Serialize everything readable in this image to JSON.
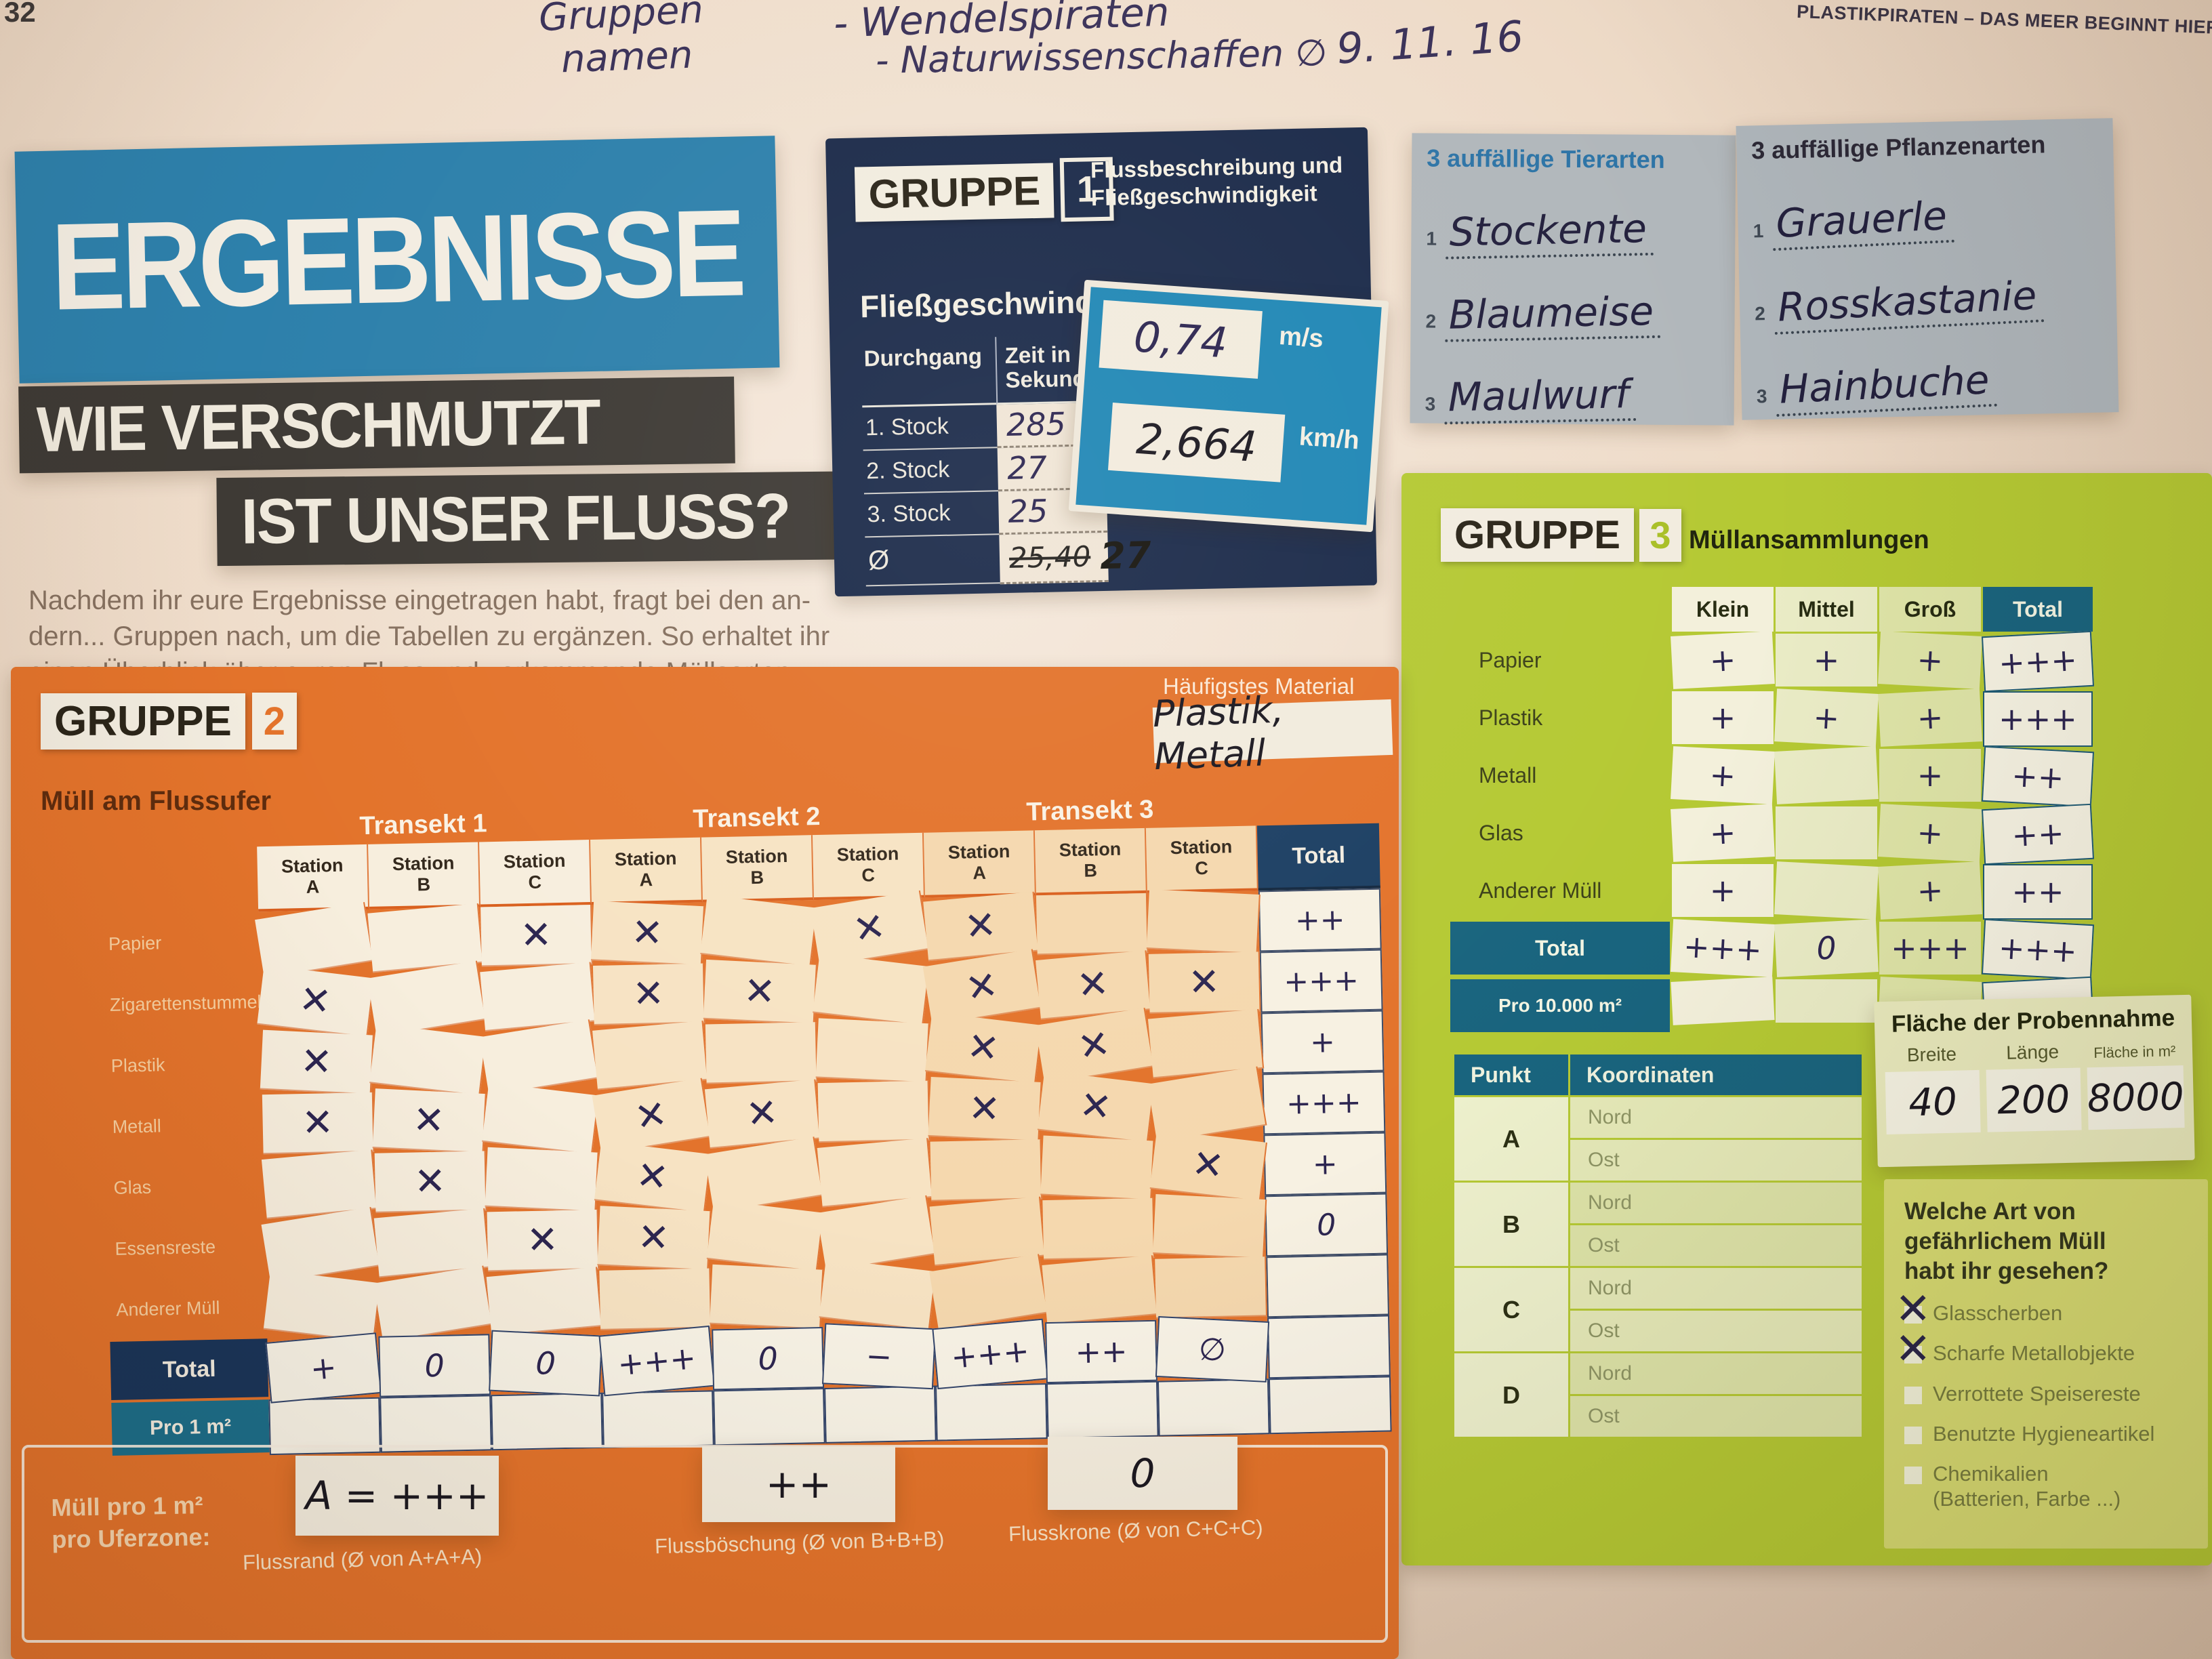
{
  "palette": {
    "orange": "#e3732b",
    "lime": "#b5c934",
    "navy": "#1c2b4a",
    "blue": "#2d80ab",
    "teal": "#19647e",
    "speed_blue": "#2087b5"
  },
  "page": {
    "number": "32",
    "brand": "PLASTIKPIRATEN – DAS MEER BEGINNT HIER!"
  },
  "handwritten_header": {
    "label_line1": "Gruppen",
    "label_line2": "namen",
    "entry1": "- Wendelspiraten",
    "entry2": "- Naturwissenschaffen ∅",
    "date": "9. 11. 16"
  },
  "title": {
    "line1": "ERGEBNISSE",
    "line2": "WIE VERSCHMUTZT",
    "line3": "IST UNSER FLUSS?"
  },
  "intro": "Nachdem ihr eure Ergebnisse eingetragen habt, fragt bei den an-\ndern... Gruppen nach, um die Tabellen zu ergänzen. So erhaltet ihr\neinen Überblick über euren Fluss und vorkommende Müllsorten.",
  "gruppe1": {
    "label": "GRUPPE",
    "number": "1",
    "topic": "Flussbeschreibung und\nFließgeschwindigkeit",
    "subtitle": "Fließgeschwindigkeit",
    "col1": "Durchgang",
    "col2": "Zeit in\nSekunden",
    "rows": [
      {
        "label": "1. Stock",
        "value": "285"
      },
      {
        "label": "2. Stock",
        "value": "27"
      },
      {
        "label": "3. Stock",
        "value": "25"
      }
    ],
    "oe_label": "Ø",
    "oe_struck": "25,40",
    "oe_value": "27",
    "speed_ms": {
      "value": "0,74",
      "unit": "m/s"
    },
    "speed_kmh": {
      "value": "2,664",
      "unit": "km/h"
    }
  },
  "species": {
    "tiere": {
      "title": "3 auffällige Tierarten",
      "items": [
        "Stockente",
        "Blaumeise",
        "Maulwurf"
      ]
    },
    "pflanzen": {
      "title": "3 auffällige Pflanzenarten",
      "items": [
        "Grauerle",
        "Rosskastanie",
        "Hainbuche"
      ]
    }
  },
  "gruppe2": {
    "label": "GRUPPE",
    "number": "2",
    "subtitle": "Müll am Flussufer",
    "material_label": "Häufigstes Material",
    "material_value": "Plastik, Metall",
    "transekte": [
      "Transekt 1",
      "Transekt 2",
      "Transekt 3"
    ],
    "station_word": "Station",
    "station_letters": [
      "A",
      "B",
      "C",
      "A",
      "B",
      "C",
      "A",
      "B",
      "C"
    ],
    "total_header": "Total",
    "rows": [
      {
        "label": "Papier",
        "marks": [
          "",
          "",
          "✕",
          "✕",
          "",
          "✕",
          "✕",
          "",
          ""
        ],
        "total": "++"
      },
      {
        "label": "Zigarettenstummel",
        "marks": [
          "✕",
          "",
          "",
          "✕",
          "✕",
          "",
          "✕",
          "✕",
          "✕"
        ],
        "total": "+++"
      },
      {
        "label": "Plastik",
        "marks": [
          "✕",
          "",
          "",
          "",
          "",
          "",
          "✕",
          "✕",
          ""
        ],
        "total": "+"
      },
      {
        "label": "Metall",
        "marks": [
          "✕",
          "✕",
          "",
          "✕",
          "✕",
          "",
          "✕",
          "✕",
          ""
        ],
        "total": "+++"
      },
      {
        "label": "Glas",
        "marks": [
          "",
          "✕",
          "",
          "✕",
          "",
          "",
          "",
          "",
          "✕"
        ],
        "total": "+"
      },
      {
        "label": "Essensreste",
        "marks": [
          "",
          "",
          "✕",
          "✕",
          "",
          "",
          "",
          "",
          ""
        ],
        "total": "0"
      },
      {
        "label": "Anderer Müll",
        "marks": [
          "",
          "",
          "",
          "",
          "",
          "",
          "",
          "",
          ""
        ],
        "total": ""
      }
    ],
    "total_row": {
      "label": "Total",
      "values": [
        "+",
        "0",
        "0",
        "+++",
        "0",
        "−",
        "+++",
        "++",
        "∅"
      ],
      "total": ""
    },
    "pro_row": {
      "label": "Pro 1 m²",
      "values": [
        "",
        "",
        "",
        "",
        "",
        "",
        "",
        "",
        ""
      ],
      "total": ""
    },
    "zones_label": "Müll pro 1 m²\npro Uferzone:",
    "zones": [
      {
        "value": "A = +++",
        "caption": "Flussrand (Ø von A+A+A)"
      },
      {
        "value": "++",
        "caption": "Flussböschung (Ø von B+B+B)"
      },
      {
        "value": "0",
        "caption": "Flusskrone (Ø von C+C+C)"
      }
    ]
  },
  "gruppe3": {
    "label": "GRUPPE",
    "number": "3",
    "topic": "Müllansammlungen",
    "columns": [
      "Klein",
      "Mittel",
      "Groß",
      "Total"
    ],
    "rows": [
      {
        "label": "Papier",
        "values": [
          "+",
          "+",
          "+",
          "+++"
        ]
      },
      {
        "label": "Plastik",
        "values": [
          "+",
          "+",
          "+",
          "+++"
        ]
      },
      {
        "label": "Metall",
        "values": [
          "+",
          "",
          "+",
          "++"
        ]
      },
      {
        "label": "Glas",
        "values": [
          "+",
          "",
          "+",
          "++"
        ]
      },
      {
        "label": "Anderer Müll",
        "values": [
          "+",
          "",
          "+",
          "++"
        ]
      },
      {
        "label": "Total",
        "values": [
          "+++",
          "0",
          "+++",
          "+++"
        ]
      },
      {
        "label": "Pro 10.000 m²",
        "values": [
          "",
          "",
          "",
          ""
        ]
      }
    ],
    "koordinaten": {
      "col1": "Punkt",
      "col2": "Koordinaten",
      "points": [
        "A",
        "B",
        "C",
        "D"
      ],
      "subrows": [
        "Nord",
        "Ost"
      ]
    },
    "flaeche": {
      "title": "Fläche der Probennahme",
      "fields": [
        {
          "label": "Breite",
          "value": "40"
        },
        {
          "label": "Länge",
          "value": "200"
        },
        {
          "label": "Fläche in m²",
          "value": "8000"
        }
      ]
    },
    "gefahr": {
      "question": "Welche Art von\ngefährlichem Müll\nhabt ihr gesehen?",
      "check_glyph": "✕",
      "options": [
        {
          "label": "Glasscherben",
          "checked": true
        },
        {
          "label": "Scharfe Metallobjekte",
          "checked": true
        },
        {
          "label": "Verrottete Speisereste",
          "checked": false
        },
        {
          "label": "Benutzte Hygieneartikel",
          "checked": false
        },
        {
          "label": "Chemikalien\n(Batterien, Farbe ...)",
          "checked": false
        }
      ]
    }
  }
}
